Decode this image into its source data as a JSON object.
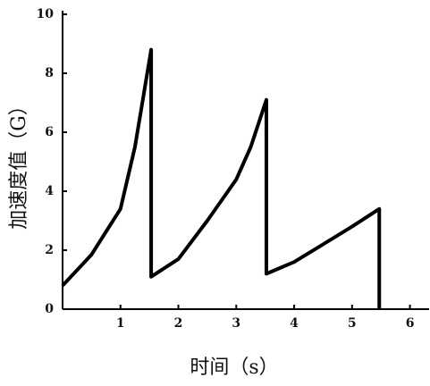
{
  "chart_data": {
    "type": "line",
    "x_label": "时间（s）",
    "y_label": "加速度值（G）",
    "x": [
      0,
      0.5,
      1,
      1.25,
      1.53,
      1.53,
      2,
      2.5,
      3,
      3.25,
      3.52,
      3.52,
      4,
      4.5,
      5,
      5.47,
      5.47
    ],
    "series": [
      {
        "color": "#000000",
        "values": [
          0.8,
          1.85,
          3.4,
          5.5,
          8.8,
          1.1,
          1.7,
          3.0,
          4.4,
          5.5,
          7.1,
          1.2,
          1.6,
          2.2,
          2.8,
          3.4,
          0
        ]
      }
    ],
    "xlim": [
      0,
      6.3
    ],
    "ylim": [
      0,
      10
    ],
    "xticks": [
      1,
      2,
      3,
      4,
      5,
      6
    ],
    "yticks": [
      0,
      2,
      4,
      6,
      8,
      10
    ]
  }
}
